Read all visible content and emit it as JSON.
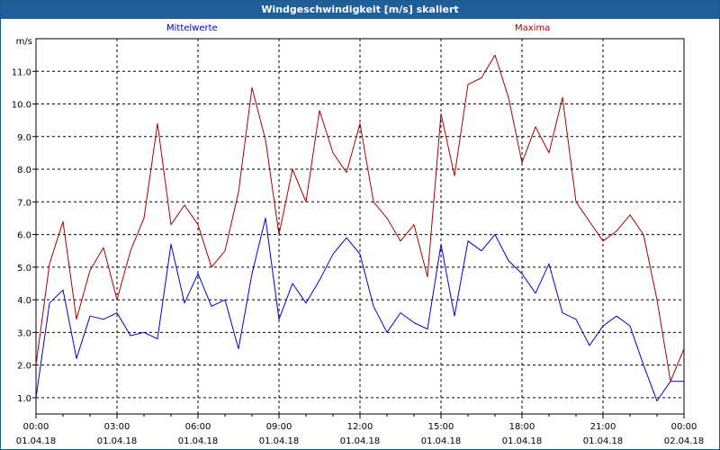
{
  "window": {
    "title": "Windgeschwindigkeit [m/s] skaliert"
  },
  "chart_data": {
    "type": "line",
    "title": "Windgeschwindigkeit [m/s] skaliert",
    "ylabel": "m/s",
    "xlabel": "",
    "ylim": [
      0.5,
      12.0
    ],
    "grid": true,
    "legend_placement": "top",
    "y_ticks": [
      "1.0",
      "2.0",
      "3.0",
      "4.0",
      "5.0",
      "6.0",
      "7.0",
      "8.0",
      "9.0",
      "10.0",
      "11.0"
    ],
    "x_ticks": [
      {
        "time": "00:00",
        "date": "01.04.18"
      },
      {
        "time": "03:00",
        "date": "01.04.18"
      },
      {
        "time": "06:00",
        "date": "01.04.18"
      },
      {
        "time": "09:00",
        "date": "01.04.18"
      },
      {
        "time": "12:00",
        "date": "01.04.18"
      },
      {
        "time": "15:00",
        "date": "01.04.18"
      },
      {
        "time": "18:00",
        "date": "01.04.18"
      },
      {
        "time": "21:00",
        "date": "01.04.18"
      },
      {
        "time": "00:00",
        "date": "02.04.18"
      }
    ],
    "series": [
      {
        "name": "Mittelwerte",
        "color": "#0000cc",
        "hours": [
          0.0,
          0.5,
          1.0,
          1.5,
          2.0,
          2.5,
          3.0,
          3.5,
          4.0,
          4.5,
          5.0,
          5.5,
          6.0,
          6.5,
          7.0,
          7.5,
          8.0,
          8.5,
          9.0,
          9.5,
          10.0,
          10.5,
          11.0,
          11.5,
          12.0,
          12.5,
          13.0,
          13.5,
          14.0,
          14.5,
          15.0,
          15.5,
          16.0,
          16.5,
          17.0,
          17.5,
          18.0,
          18.5,
          19.0,
          19.5,
          20.0,
          20.5,
          21.0,
          21.5,
          22.0,
          22.5,
          23.0,
          23.5,
          24.0
        ],
        "values": [
          1.0,
          3.9,
          4.3,
          2.2,
          3.5,
          3.4,
          3.6,
          2.9,
          3.0,
          2.8,
          5.7,
          3.9,
          4.8,
          3.8,
          4.0,
          2.5,
          4.8,
          6.5,
          3.4,
          4.5,
          3.9,
          4.6,
          5.4,
          5.9,
          5.4,
          3.8,
          3.0,
          3.6,
          3.3,
          3.1,
          5.7,
          3.5,
          5.8,
          5.5,
          6.0,
          5.2,
          4.8,
          4.2,
          5.1,
          3.6,
          3.4,
          2.6,
          3.2,
          3.5,
          3.2,
          2.0,
          0.9,
          1.5,
          1.5
        ]
      },
      {
        "name": "Maxima",
        "color": "#aa0000",
        "hours": [
          0.0,
          0.5,
          1.0,
          1.5,
          2.0,
          2.5,
          3.0,
          3.5,
          4.0,
          4.5,
          5.0,
          5.5,
          6.0,
          6.5,
          7.0,
          7.5,
          8.0,
          8.5,
          9.0,
          9.5,
          10.0,
          10.5,
          11.0,
          11.5,
          12.0,
          12.5,
          13.0,
          13.5,
          14.0,
          14.5,
          15.0,
          15.5,
          16.0,
          16.5,
          17.0,
          17.5,
          18.0,
          18.5,
          19.0,
          19.5,
          20.0,
          20.5,
          21.0,
          21.5,
          22.0,
          22.5,
          23.0,
          23.5,
          24.0
        ],
        "values": [
          2.0,
          5.1,
          6.4,
          3.4,
          4.9,
          5.6,
          4.0,
          5.5,
          6.5,
          9.4,
          6.3,
          6.9,
          6.3,
          5.0,
          5.5,
          7.3,
          10.5,
          8.9,
          6.0,
          8.0,
          7.0,
          9.8,
          8.5,
          7.9,
          9.4,
          7.0,
          6.5,
          5.8,
          6.3,
          4.7,
          9.7,
          7.8,
          10.6,
          10.8,
          11.5,
          10.2,
          8.2,
          9.3,
          8.5,
          10.2,
          7.0,
          6.4,
          5.8,
          6.1,
          6.6,
          6.0,
          4.0,
          1.5,
          2.5
        ]
      }
    ]
  }
}
